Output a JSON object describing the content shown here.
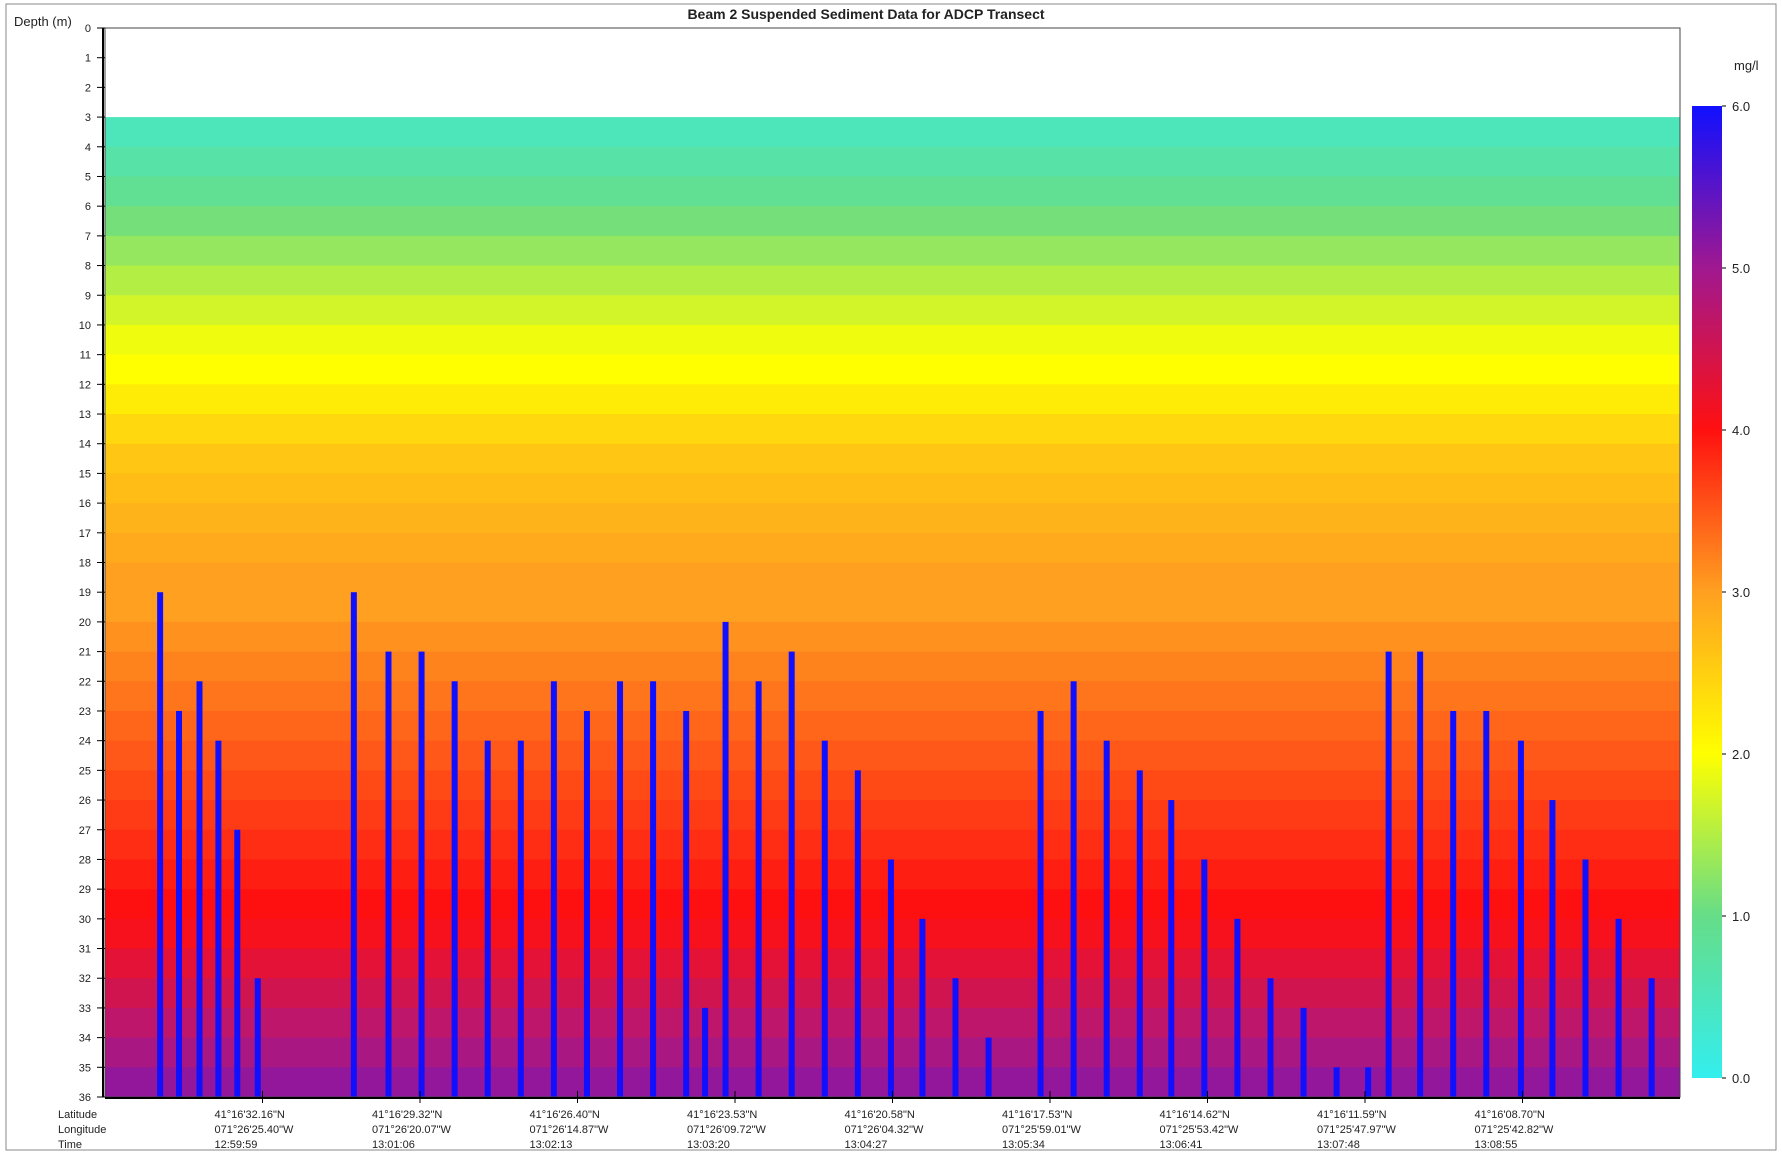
{
  "chart_data": {
    "type": "heatmap",
    "title": "Beam 2 Suspended Sediment Data for ADCP Transect",
    "y_label": "Depth (m)",
    "ylim": [
      0,
      36
    ],
    "yticks": [
      0,
      1,
      2,
      3,
      4,
      5,
      6,
      7,
      8,
      9,
      10,
      11,
      12,
      13,
      14,
      15,
      16,
      17,
      18,
      19,
      20,
      21,
      22,
      23,
      24,
      25,
      26,
      27,
      28,
      29,
      30,
      31,
      32,
      33,
      34,
      35,
      36
    ],
    "xlim": [
      0,
      10
    ],
    "xticks": [
      1,
      2,
      3,
      4,
      5,
      6,
      7,
      8,
      9
    ],
    "x_rows": [
      "Latitude",
      "Longitude",
      "Time"
    ],
    "xtick_labels": {
      "latitude": [
        "41°16'32.16\"N",
        "41°16'29.32\"N",
        "41°16'26.40\"N",
        "41°16'23.53\"N",
        "41°16'20.58\"N",
        "41°16'17.53\"N",
        "41°16'14.62\"N",
        "41°16'11.59\"N",
        "41°16'08.70\"N"
      ],
      "longitude": [
        "071°26'25.40\"W",
        "071°26'20.07\"W",
        "071°26'14.87\"W",
        "071°26'09.72\"W",
        "071°26'04.32\"W",
        "071°25'59.01\"W",
        "071°25'53.42\"W",
        "071°25'47.97\"W",
        "071°25'42.82\"W"
      ],
      "time": [
        "12:59:59",
        "13:01:06",
        "13:02:13",
        "13:03:20",
        "13:04:27",
        "13:05:34",
        "13:06:41",
        "13:07:48",
        "13:08:55"
      ]
    },
    "colorbar_label": "mg/l",
    "zlim": [
      0,
      6
    ],
    "zticks": [
      {
        "value": 0,
        "label": "0.0"
      },
      {
        "value": 1,
        "label": "1.0"
      },
      {
        "value": 2,
        "label": "2.0"
      },
      {
        "value": 3,
        "label": "3.0"
      },
      {
        "value": 4,
        "label": "4.0"
      },
      {
        "value": 5,
        "label": "5.0"
      },
      {
        "value": 6,
        "label": "6.0"
      }
    ],
    "colorscale": [
      [
        0,
        "#33eeee"
      ],
      [
        1,
        "#66dd88"
      ],
      [
        2,
        "#ffff00"
      ],
      [
        3,
        "#ffa020"
      ],
      [
        4,
        "#ff1010"
      ],
      [
        5,
        "#a01890"
      ],
      [
        6,
        "#1010ff"
      ]
    ],
    "profile": {
      "depth_bins": [
        3,
        4,
        5,
        6,
        7,
        8,
        9,
        10,
        11,
        12,
        13,
        14,
        15,
        16,
        17,
        18,
        19,
        20,
        21,
        22,
        23,
        24,
        25,
        26,
        27,
        28,
        29,
        30,
        31,
        32,
        33,
        34,
        35,
        36
      ],
      "values": [
        0.5,
        0.7,
        0.9,
        1.1,
        1.3,
        1.5,
        1.7,
        1.9,
        2.0,
        2.2,
        2.4,
        2.6,
        2.7,
        2.8,
        2.9,
        3.0,
        3.0,
        3.1,
        3.2,
        3.3,
        3.4,
        3.5,
        3.6,
        3.7,
        3.8,
        3.9,
        4.0,
        4.1,
        4.3,
        4.5,
        4.7,
        4.9,
        5.1
      ]
    },
    "streaks": {
      "value": 6,
      "x": [
        0.35,
        0.47,
        0.6,
        0.72,
        0.84,
        0.97,
        1.58,
        1.8,
        2.01,
        2.22,
        2.43,
        2.64,
        2.85,
        3.06,
        3.27,
        3.48,
        3.69,
        3.81,
        3.94,
        4.15,
        4.36,
        4.57,
        4.78,
        4.99,
        5.19,
        5.4,
        5.61,
        5.94,
        6.15,
        6.36,
        6.57,
        6.77,
        6.98,
        7.19,
        7.4,
        7.61,
        7.82,
        8.02,
        8.15,
        8.35,
        8.56,
        8.77,
        8.99,
        9.19,
        9.4,
        9.61,
        9.82
      ],
      "top": [
        19,
        23,
        22,
        24,
        27,
        32,
        19,
        21,
        21,
        22,
        24,
        24,
        22,
        23,
        22,
        22,
        23,
        33,
        20,
        22,
        21,
        24,
        25,
        28,
        30,
        32,
        34,
        23,
        22,
        24,
        25,
        26,
        28,
        30,
        32,
        33,
        35,
        35,
        21,
        21,
        23,
        23,
        24,
        26,
        28,
        30,
        32
      ]
    }
  }
}
